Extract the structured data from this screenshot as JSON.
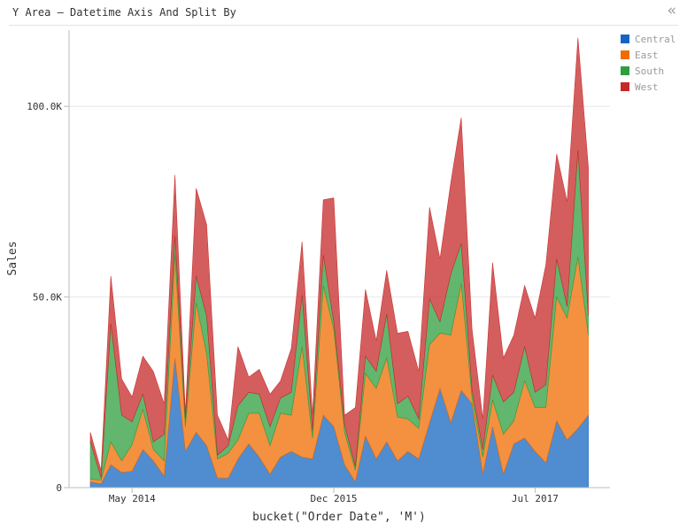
{
  "header": {
    "title": "Y Area – Datetime Axis And Split By",
    "collapse_icon": "double-chevron-left-icon"
  },
  "chart_data": {
    "type": "area",
    "stacked": true,
    "title": "Y Area – Datetime Axis And Split By",
    "xlabel": "bucket(\"Order Date\", 'M')",
    "ylabel": "Sales",
    "x_type": "datetime",
    "xlim": [
      "2013-11-01",
      "2018-02-01"
    ],
    "ylim": [
      0,
      120000
    ],
    "x_ticks": [
      {
        "date": "2014-05-01",
        "label": "May 2014"
      },
      {
        "date": "2015-12-01",
        "label": "Dec 2015"
      },
      {
        "date": "2017-07-01",
        "label": "Jul 2017"
      }
    ],
    "y_ticks": [
      {
        "value": 0,
        "label": "0"
      },
      {
        "value": 50000,
        "label": "50.0K"
      },
      {
        "value": 100000,
        "label": "100.0K"
      }
    ],
    "grid": true,
    "legend_position": "top-right",
    "x": [
      "2014-01-01",
      "2014-02-01",
      "2014-03-01",
      "2014-04-01",
      "2014-05-01",
      "2014-06-01",
      "2014-07-01",
      "2014-08-01",
      "2014-09-01",
      "2014-10-01",
      "2014-11-01",
      "2014-12-01",
      "2015-01-01",
      "2015-02-01",
      "2015-03-01",
      "2015-04-01",
      "2015-05-01",
      "2015-06-01",
      "2015-07-01",
      "2015-08-01",
      "2015-09-01",
      "2015-10-01",
      "2015-11-01",
      "2015-12-01",
      "2016-01-01",
      "2016-02-01",
      "2016-03-01",
      "2016-04-01",
      "2016-05-01",
      "2016-06-01",
      "2016-07-01",
      "2016-08-01",
      "2016-09-01",
      "2016-10-01",
      "2016-11-01",
      "2016-12-01",
      "2017-01-01",
      "2017-02-01",
      "2017-03-01",
      "2017-04-01",
      "2017-05-01",
      "2017-06-01",
      "2017-07-01",
      "2017-08-01",
      "2017-09-01",
      "2017-10-01",
      "2017-11-01",
      "2017-12-01"
    ],
    "series": [
      {
        "name": "Central",
        "color": "#1565c0",
        "values": [
          1500,
          1000,
          6000,
          4000,
          4300,
          10000,
          7000,
          3000,
          34000,
          9500,
          14500,
          11000,
          2500,
          2500,
          7500,
          11500,
          8000,
          3500,
          8000,
          9500,
          8000,
          7500,
          19000,
          16000,
          6000,
          1500,
          13500,
          7500,
          12000,
          7000,
          9500,
          7500,
          17000,
          26000,
          17000,
          25500,
          22000,
          3500,
          16000,
          3500,
          11500,
          13000,
          9500,
          6500,
          17500,
          12500,
          15500,
          19000
        ]
      },
      {
        "name": "East",
        "color": "#ef6c00",
        "values": [
          700,
          1000,
          6000,
          3000,
          7000,
          10500,
          3000,
          4000,
          27000,
          6500,
          34000,
          24000,
          5000,
          6500,
          5000,
          8000,
          11500,
          7500,
          11500,
          9500,
          29000,
          5500,
          34000,
          25500,
          8500,
          3000,
          16500,
          18500,
          22000,
          11500,
          8500,
          8000,
          20500,
          14500,
          23000,
          28000,
          1500,
          4500,
          7000,
          10500,
          6000,
          15000,
          11500,
          14500,
          32500,
          32000,
          45000,
          21000
        ]
      },
      {
        "name": "South",
        "color": "#2e9e3e",
        "values": [
          10000,
          500,
          31000,
          12000,
          6000,
          4000,
          2000,
          7000,
          5000,
          2000,
          7000,
          10000,
          1000,
          2000,
          9000,
          5500,
          5000,
          5000,
          4000,
          6000,
          13500,
          2000,
          8000,
          2000,
          2000,
          1000,
          4500,
          4500,
          11500,
          3500,
          6000,
          2500,
          12000,
          3000,
          16000,
          10500,
          2000,
          2000,
          6500,
          8500,
          7500,
          9000,
          4000,
          6000,
          10000,
          3000,
          28000,
          5000
        ]
      },
      {
        "name": "West",
        "color": "#c62828",
        "values": [
          2300,
          2000,
          12500,
          9500,
          6500,
          10000,
          18500,
          8000,
          16000,
          1500,
          23000,
          24000,
          10500,
          1500,
          15500,
          4000,
          6500,
          8500,
          4500,
          11500,
          14000,
          4000,
          14500,
          32500,
          2500,
          15500,
          17500,
          8000,
          11500,
          18500,
          17000,
          12500,
          24000,
          16500,
          24000,
          33000,
          16000,
          8000,
          29500,
          11500,
          15000,
          16000,
          19500,
          31500,
          27500,
          27500,
          29500,
          39000
        ]
      }
    ]
  }
}
